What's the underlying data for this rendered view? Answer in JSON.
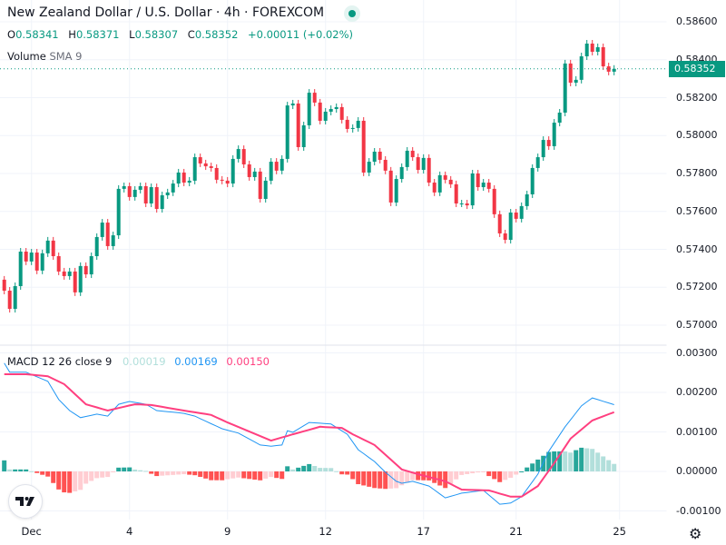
{
  "header": {
    "title": "New Zealand Dollar / U.S. Dollar · 4h · FOREXCOM",
    "ohlc": {
      "o_label": "O",
      "o": "0.58341",
      "h_label": "H",
      "h": "0.58371",
      "l_label": "L",
      "l": "0.58307",
      "c_label": "C",
      "c": "0.58352",
      "change": "+0.00011 (+0.02%)"
    },
    "volume_label": "Volume",
    "volume_sub": "SMA 9"
  },
  "macd_legend": {
    "label": "MACD",
    "params": "12 26 close 9",
    "hist": "0.00019",
    "macd": "0.00169",
    "signal": "0.00150"
  },
  "price_axis": [
    "0.58600",
    "0.58400",
    "0.58200",
    "0.58000",
    "0.57800",
    "0.57600",
    "0.57400",
    "0.57200",
    "0.57000"
  ],
  "last_price": "0.58352",
  "macd_axis": [
    "0.00300",
    "0.00200",
    "0.00100",
    "0.00000",
    "-0.00100"
  ],
  "x_axis": [
    {
      "label": "Dec",
      "index": 5
    },
    {
      "label": "4",
      "index": 23
    },
    {
      "label": "9",
      "index": 41
    },
    {
      "label": "12",
      "index": 59
    },
    {
      "label": "17",
      "index": 77
    },
    {
      "label": "21",
      "index": 94
    },
    {
      "label": "25",
      "index": 113
    }
  ],
  "colors": {
    "up": "#089981",
    "down": "#f23645",
    "macd": "#2196f3",
    "signal": "#ff3f7f",
    "hist_up_strong": "#26a69a",
    "hist_up_weak": "#b2dfdb",
    "hist_down_strong": "#ff5252",
    "hist_down_weak": "#ffcdd2",
    "grid": "#f0f3fa"
  },
  "chart_data": [
    {
      "type": "candlestick",
      "title": "New Zealand Dollar / U.S. Dollar · 4h · FOREXCOM",
      "ylim": [
        0.5695,
        0.5865
      ],
      "first_open": 0.5724,
      "close": [
        0.57182,
        0.57086,
        0.57206,
        0.57388,
        0.57336,
        0.57383,
        0.57288,
        0.57379,
        0.57446,
        0.57364,
        0.57283,
        0.57259,
        0.57283,
        0.57173,
        0.57312,
        0.57268,
        0.57364,
        0.57465,
        0.57541,
        0.57417,
        0.57474,
        0.57719,
        0.57733,
        0.57676,
        0.57714,
        0.57733,
        0.57642,
        0.57728,
        0.57613,
        0.57685,
        0.577,
        0.57747,
        0.57805,
        0.57752,
        0.57762,
        0.57886,
        0.57853,
        0.57838,
        0.57829,
        0.57767,
        0.57762,
        0.57747,
        0.57877,
        0.57929,
        0.57848,
        0.57781,
        0.5781,
        0.57666,
        0.57762,
        0.57862,
        0.57815,
        0.57877,
        0.58159,
        0.58169,
        0.57939,
        0.58054,
        0.58226,
        0.58174,
        0.58078,
        0.58126,
        0.5814,
        0.5815,
        0.58083,
        0.58035,
        0.5804,
        0.58078,
        0.57805,
        0.57862,
        0.57915,
        0.57872,
        0.57815,
        0.57647,
        0.57771,
        0.57834,
        0.5792,
        0.57886,
        0.57819,
        0.57882,
        0.57752,
        0.577,
        0.57791,
        0.57767,
        0.57743,
        0.57642,
        0.57642,
        0.57632,
        0.578,
        0.57728,
        0.57752,
        0.57719,
        0.57585,
        0.57484,
        0.5745,
        0.57594,
        0.57561,
        0.57628,
        0.5769,
        0.57829,
        0.57886,
        0.57977,
        0.57944,
        0.58068,
        0.58121,
        0.5838,
        0.58279,
        0.58294,
        0.58418,
        0.58485,
        0.58442,
        0.58466,
        0.58365,
        0.58337,
        0.58352
      ]
    },
    {
      "type": "line",
      "title": "MACD 12 26 close 9",
      "ylim": [
        -0.00125,
        0.0031
      ],
      "macd_points": [
        [
          0,
          0.00274
        ],
        [
          1,
          0.00251
        ],
        [
          4,
          0.00251
        ],
        [
          8,
          0.00228
        ],
        [
          10,
          0.00182
        ],
        [
          12,
          0.00154
        ],
        [
          14,
          0.00136
        ],
        [
          17,
          0.00145
        ],
        [
          19,
          0.0014
        ],
        [
          21,
          0.0017
        ],
        [
          23,
          0.00177
        ],
        [
          26,
          0.0017
        ],
        [
          28,
          0.00154
        ],
        [
          33,
          0.00147
        ],
        [
          35,
          0.0014
        ],
        [
          40,
          0.00108
        ],
        [
          43,
          0.00097
        ],
        [
          47,
          0.00067
        ],
        [
          49,
          0.00064
        ],
        [
          51,
          0.00067
        ],
        [
          52,
          0.00103
        ],
        [
          53,
          0.00099
        ],
        [
          56,
          0.00124
        ],
        [
          60,
          0.0012
        ],
        [
          63,
          0.00094
        ],
        [
          65,
          0.00055
        ],
        [
          68,
          0.00025
        ],
        [
          70,
          -2e-05
        ],
        [
          72,
          -0.00025
        ],
        [
          73,
          -0.0003
        ],
        [
          75,
          -0.00025
        ],
        [
          78,
          -0.00037
        ],
        [
          81,
          -0.00067
        ],
        [
          84,
          -0.00055
        ],
        [
          88,
          -0.00048
        ],
        [
          91,
          -0.00083
        ],
        [
          93,
          -0.0008
        ],
        [
          95,
          -0.00064
        ],
        [
          98,
          -7e-05
        ],
        [
          100,
          0.00051
        ],
        [
          103,
          0.00113
        ],
        [
          106,
          0.00166
        ],
        [
          108,
          0.00186
        ],
        [
          112,
          0.00169
        ]
      ],
      "signal_points": [
        [
          0,
          0.00246
        ],
        [
          4,
          0.00246
        ],
        [
          8,
          0.00241
        ],
        [
          11,
          0.00221
        ],
        [
          15,
          0.0017
        ],
        [
          19,
          0.00154
        ],
        [
          24,
          0.0017
        ],
        [
          27,
          0.00168
        ],
        [
          33,
          0.00154
        ],
        [
          38,
          0.00143
        ],
        [
          41,
          0.00124
        ],
        [
          45,
          0.00101
        ],
        [
          49,
          0.00078
        ],
        [
          53,
          0.00094
        ],
        [
          58,
          0.00113
        ],
        [
          62,
          0.0011
        ],
        [
          64,
          0.00094
        ],
        [
          68,
          0.00067
        ],
        [
          73,
          5e-05
        ],
        [
          76,
          -7e-05
        ],
        [
          81,
          -0.00025
        ],
        [
          84,
          -0.00046
        ],
        [
          89,
          -0.00048
        ],
        [
          93,
          -0.00064
        ],
        [
          95,
          -0.00064
        ],
        [
          98,
          -0.00037
        ],
        [
          101,
          0.00021
        ],
        [
          104,
          0.00083
        ],
        [
          108,
          0.00129
        ],
        [
          112,
          0.0015
        ]
      ]
    }
  ]
}
